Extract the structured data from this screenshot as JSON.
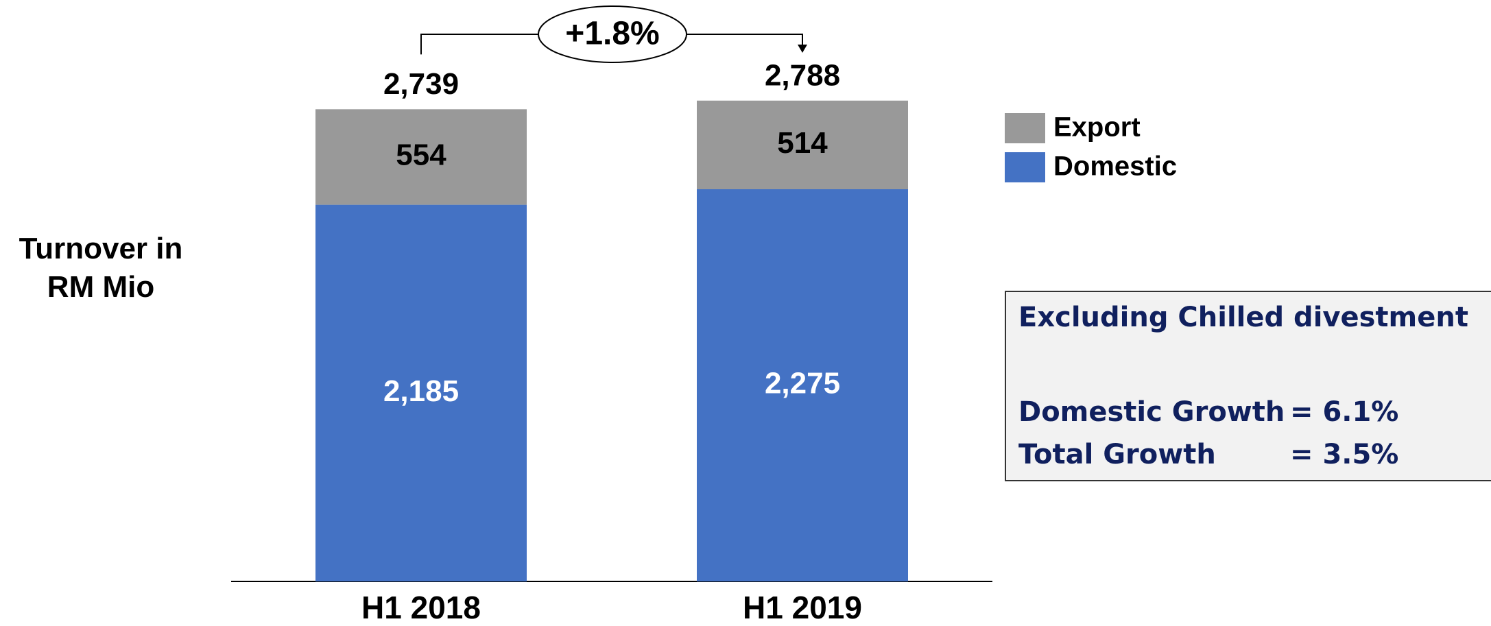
{
  "chart_data": {
    "type": "stacked-bar",
    "y_label": "Turnover in RM Mio",
    "categories": [
      "H1 2018",
      "H1 2019"
    ],
    "series": [
      {
        "name": "Domestic",
        "color": "#4472c4",
        "values": [
          2185,
          2275
        ],
        "value_labels": [
          "2,185",
          "2,275"
        ],
        "label_color": "#ffffff"
      },
      {
        "name": "Export",
        "color": "#999999",
        "values": [
          554,
          514
        ],
        "value_labels": [
          "554",
          "514"
        ],
        "label_color": "#000000"
      }
    ],
    "totals": [
      2739,
      2788
    ],
    "total_labels": [
      "2,739",
      "2,788"
    ],
    "growth_annotation": "+1.8%",
    "note": {
      "title": "Excluding Chilled divestment",
      "lines": [
        {
          "label": "Domestic Growth",
          "value": "= 6.1%"
        },
        {
          "label": "Total Growth",
          "value": "= 3.5%"
        }
      ]
    }
  }
}
